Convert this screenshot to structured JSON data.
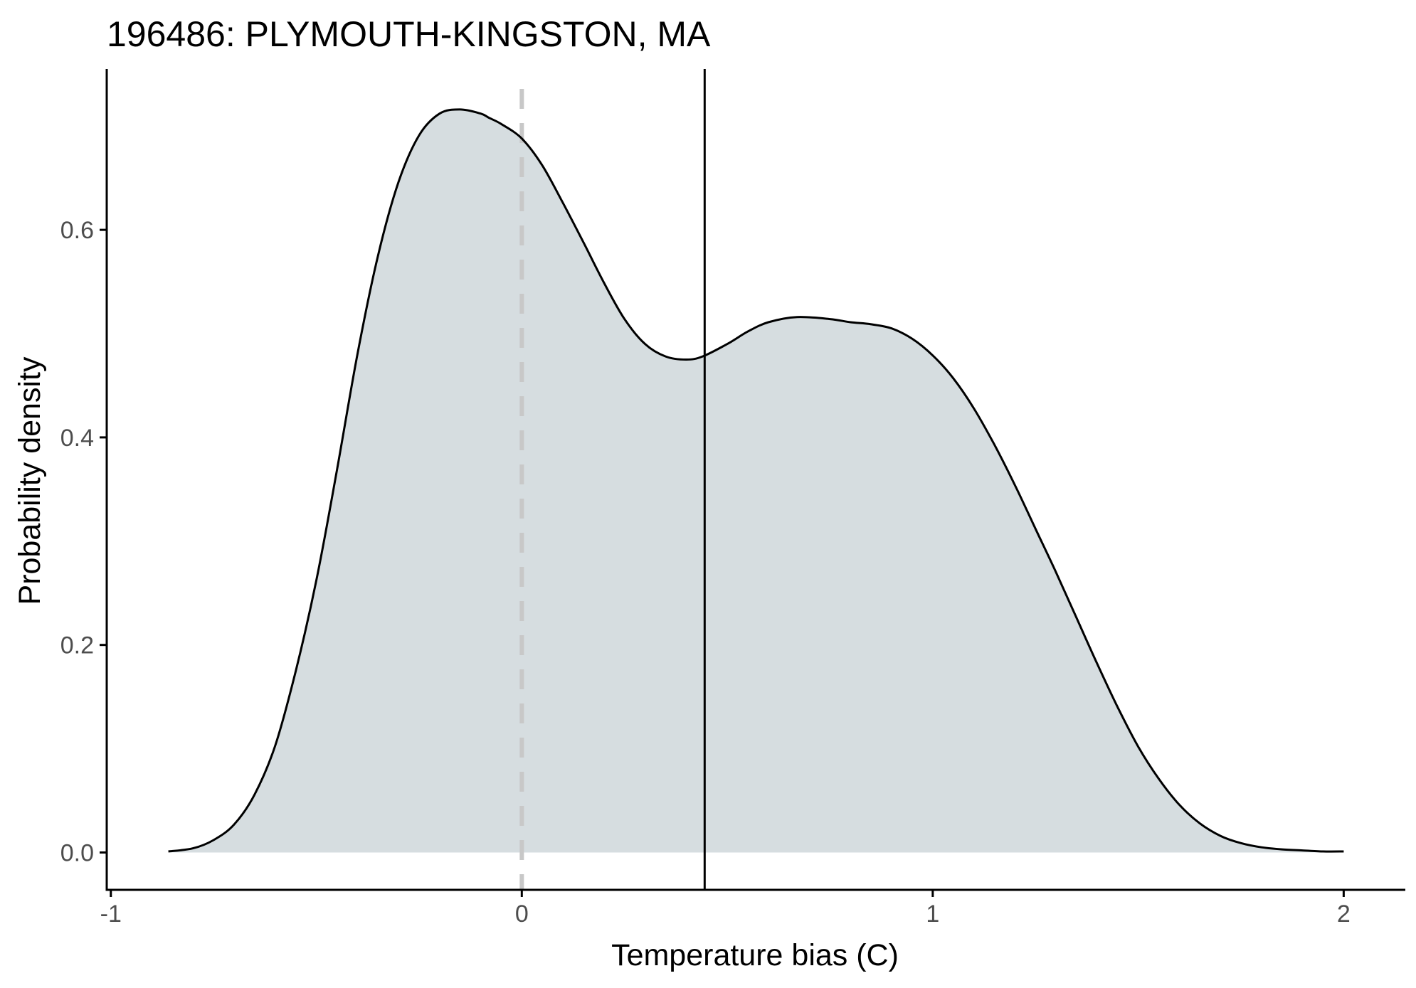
{
  "chart_data": {
    "type": "area",
    "title": "196486: PLYMOUTH-KINGSTON, MA",
    "xlabel": "Temperature bias (C)",
    "ylabel": "Probability density",
    "xlim": [
      -1.01,
      2.15
    ],
    "ylim": [
      -0.036,
      0.755
    ],
    "x_ticks": [
      -1,
      0,
      1,
      2
    ],
    "x_tick_labels": [
      "-1",
      "0",
      "1",
      "2"
    ],
    "y_ticks": [
      0.0,
      0.2,
      0.4,
      0.6
    ],
    "y_tick_labels": [
      "0.0",
      "0.2",
      "0.4",
      "0.6"
    ],
    "grid": false,
    "legend": "none",
    "series": [
      {
        "x": [
          -0.86,
          -0.8,
          -0.75,
          -0.7,
          -0.65,
          -0.6,
          -0.55,
          -0.5,
          -0.45,
          -0.4,
          -0.35,
          -0.3,
          -0.25,
          -0.2,
          -0.15,
          -0.1,
          -0.08,
          -0.05,
          0.0,
          0.05,
          0.1,
          0.15,
          0.2,
          0.25,
          0.3,
          0.35,
          0.4,
          0.44,
          0.5,
          0.55,
          0.6,
          0.67,
          0.75,
          0.8,
          0.85,
          0.9,
          0.95,
          1.0,
          1.05,
          1.1,
          1.15,
          1.2,
          1.25,
          1.3,
          1.35,
          1.4,
          1.45,
          1.5,
          1.55,
          1.6,
          1.65,
          1.7,
          1.75,
          1.8,
          1.85,
          1.9,
          1.95,
          2.0
        ],
        "y": [
          0.001,
          0.004,
          0.012,
          0.027,
          0.056,
          0.103,
          0.175,
          0.262,
          0.368,
          0.48,
          0.575,
          0.646,
          0.691,
          0.712,
          0.716,
          0.712,
          0.708,
          0.702,
          0.688,
          0.662,
          0.626,
          0.588,
          0.549,
          0.514,
          0.49,
          0.478,
          0.475,
          0.478,
          0.49,
          0.502,
          0.511,
          0.516,
          0.514,
          0.511,
          0.509,
          0.505,
          0.495,
          0.479,
          0.457,
          0.428,
          0.393,
          0.354,
          0.312,
          0.27,
          0.226,
          0.182,
          0.14,
          0.102,
          0.071,
          0.046,
          0.028,
          0.016,
          0.009,
          0.005,
          0.003,
          0.002,
          0.001,
          0.001
        ]
      }
    ],
    "reference_lines": [
      {
        "x": 0.0,
        "style": "dashed"
      },
      {
        "x": 0.445,
        "style": "solid"
      }
    ],
    "colors": {
      "fill": "#d6dde0",
      "curve": "#000000",
      "zero_line": "#c8c8c8",
      "mean_line": "#000000",
      "axis": "#000000",
      "tick_label": "#4d4d4d"
    }
  }
}
